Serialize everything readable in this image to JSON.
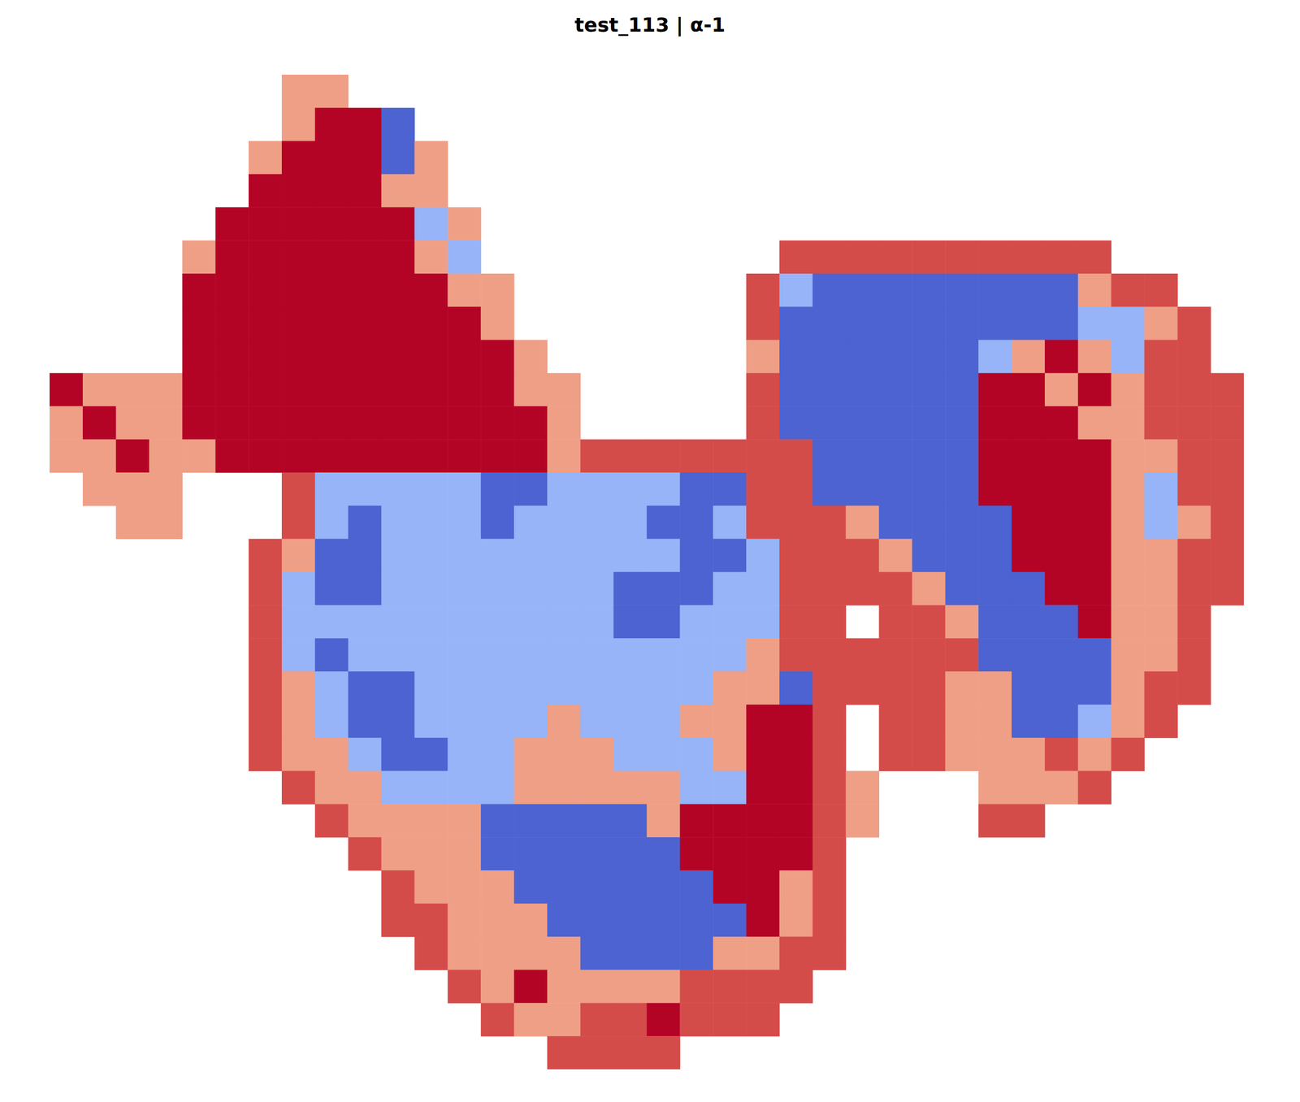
{
  "chart_data": {
    "type": "heatmap",
    "title": "test_113 | α-1",
    "values": [
      [
        null,
        null,
        null,
        null,
        null,
        null,
        null,
        0.4,
        0.4,
        null,
        null,
        null,
        null,
        null,
        null,
        null,
        null,
        null,
        null,
        null,
        null,
        null,
        null,
        null,
        null,
        null,
        null,
        null,
        null,
        null,
        null,
        null,
        null,
        null,
        null,
        null
      ],
      [
        null,
        null,
        null,
        null,
        null,
        null,
        null,
        0.4,
        0.9,
        0.9,
        -0.8,
        null,
        null,
        null,
        null,
        null,
        null,
        null,
        null,
        null,
        null,
        null,
        null,
        null,
        null,
        null,
        null,
        null,
        null,
        null,
        null,
        null,
        null,
        null,
        null,
        null
      ],
      [
        null,
        null,
        null,
        null,
        null,
        null,
        0.4,
        0.9,
        0.9,
        0.9,
        -0.8,
        0.4,
        null,
        null,
        null,
        null,
        null,
        null,
        null,
        null,
        null,
        null,
        null,
        null,
        null,
        null,
        null,
        null,
        null,
        null,
        null,
        null,
        null,
        null,
        null,
        null
      ],
      [
        null,
        null,
        null,
        null,
        null,
        null,
        0.9,
        0.9,
        0.9,
        0.9,
        0.4,
        0.4,
        null,
        null,
        null,
        null,
        null,
        null,
        null,
        null,
        null,
        null,
        null,
        null,
        null,
        null,
        null,
        null,
        null,
        null,
        null,
        null,
        null,
        null,
        null,
        null
      ],
      [
        null,
        null,
        null,
        null,
        null,
        0.9,
        0.9,
        0.9,
        0.9,
        0.9,
        0.9,
        -0.4,
        0.4,
        null,
        null,
        null,
        null,
        null,
        null,
        null,
        null,
        null,
        null,
        null,
        null,
        null,
        null,
        null,
        null,
        null,
        null,
        null,
        null,
        null,
        null,
        null
      ],
      [
        null,
        null,
        null,
        null,
        0.4,
        0.9,
        0.9,
        0.9,
        0.9,
        0.9,
        0.9,
        0.4,
        -0.4,
        null,
        null,
        null,
        null,
        null,
        null,
        null,
        null,
        null,
        0.7,
        0.7,
        0.7,
        0.7,
        0.7,
        0.7,
        0.7,
        0.7,
        0.7,
        0.7,
        null,
        null,
        null,
        null
      ],
      [
        null,
        null,
        null,
        null,
        0.9,
        0.9,
        0.9,
        0.9,
        0.9,
        0.9,
        0.9,
        0.9,
        0.4,
        0.4,
        null,
        null,
        null,
        null,
        null,
        null,
        null,
        0.7,
        -0.4,
        -0.8,
        -0.8,
        -0.8,
        -0.8,
        -0.8,
        -0.8,
        -0.8,
        -0.8,
        0.4,
        0.7,
        0.7,
        null,
        null
      ],
      [
        null,
        null,
        null,
        null,
        0.9,
        0.9,
        0.9,
        0.9,
        0.9,
        0.9,
        0.9,
        0.9,
        0.9,
        0.4,
        null,
        null,
        null,
        null,
        null,
        null,
        null,
        0.7,
        -0.8,
        -0.8,
        -0.8,
        -0.8,
        -0.8,
        -0.8,
        -0.8,
        -0.8,
        -0.8,
        -0.4,
        -0.4,
        0.4,
        0.7,
        null
      ],
      [
        null,
        null,
        null,
        null,
        0.9,
        0.9,
        0.9,
        0.9,
        0.9,
        0.9,
        0.9,
        0.9,
        0.9,
        0.9,
        0.4,
        null,
        null,
        null,
        null,
        null,
        null,
        0.4,
        -0.8,
        -0.8,
        -0.8,
        -0.8,
        -0.8,
        -0.8,
        -0.4,
        0.4,
        0.9,
        0.4,
        -0.4,
        0.7,
        0.7,
        null
      ],
      [
        0.9,
        0.4,
        0.4,
        0.4,
        0.9,
        0.9,
        0.9,
        0.9,
        0.9,
        0.9,
        0.9,
        0.9,
        0.9,
        0.9,
        0.4,
        0.4,
        null,
        null,
        null,
        null,
        null,
        0.7,
        -0.8,
        -0.8,
        -0.8,
        -0.8,
        -0.8,
        -0.8,
        0.9,
        0.9,
        0.4,
        0.9,
        0.4,
        0.7,
        0.7,
        0.7
      ],
      [
        0.4,
        0.9,
        0.4,
        0.4,
        0.9,
        0.9,
        0.9,
        0.9,
        0.9,
        0.9,
        0.9,
        0.9,
        0.9,
        0.9,
        0.9,
        0.4,
        null,
        null,
        null,
        null,
        null,
        0.7,
        -0.8,
        -0.8,
        -0.8,
        -0.8,
        -0.8,
        -0.8,
        0.9,
        0.9,
        0.9,
        0.4,
        0.4,
        0.7,
        0.7,
        0.7
      ],
      [
        0.4,
        0.4,
        0.9,
        0.4,
        0.4,
        0.9,
        0.9,
        0.9,
        0.9,
        0.9,
        0.9,
        0.9,
        0.9,
        0.9,
        0.9,
        0.4,
        0.7,
        0.7,
        0.7,
        0.7,
        0.7,
        0.7,
        0.7,
        -0.8,
        -0.8,
        -0.8,
        -0.8,
        -0.8,
        0.9,
        0.9,
        0.9,
        0.9,
        0.4,
        0.4,
        0.7,
        0.7
      ],
      [
        null,
        0.4,
        0.4,
        0.4,
        null,
        null,
        null,
        0.7,
        -0.4,
        -0.4,
        -0.4,
        -0.4,
        -0.4,
        -0.8,
        -0.8,
        -0.4,
        -0.4,
        -0.4,
        -0.4,
        -0.8,
        -0.8,
        0.7,
        0.7,
        -0.8,
        -0.8,
        -0.8,
        -0.8,
        -0.8,
        0.9,
        0.9,
        0.9,
        0.9,
        0.4,
        -0.4,
        0.7,
        0.7
      ],
      [
        null,
        null,
        0.4,
        0.4,
        null,
        null,
        null,
        0.7,
        -0.4,
        -0.8,
        -0.4,
        -0.4,
        -0.4,
        -0.8,
        -0.4,
        -0.4,
        -0.4,
        -0.4,
        -0.8,
        -0.8,
        -0.4,
        0.7,
        0.7,
        0.7,
        0.4,
        -0.8,
        -0.8,
        -0.8,
        -0.8,
        0.9,
        0.9,
        0.9,
        0.4,
        -0.4,
        0.4,
        0.7
      ],
      [
        null,
        null,
        null,
        null,
        null,
        null,
        0.7,
        0.4,
        -0.8,
        -0.8,
        -0.4,
        -0.4,
        -0.4,
        -0.4,
        -0.4,
        -0.4,
        -0.4,
        -0.4,
        -0.4,
        -0.8,
        -0.8,
        -0.4,
        0.7,
        0.7,
        0.7,
        0.4,
        -0.8,
        -0.8,
        -0.8,
        0.9,
        0.9,
        0.9,
        0.4,
        0.4,
        0.7,
        0.7
      ],
      [
        null,
        null,
        null,
        null,
        null,
        null,
        0.7,
        -0.4,
        -0.8,
        -0.8,
        -0.4,
        -0.4,
        -0.4,
        -0.4,
        -0.4,
        -0.4,
        -0.4,
        -0.8,
        -0.8,
        -0.8,
        -0.4,
        -0.4,
        0.7,
        0.7,
        0.7,
        0.7,
        0.4,
        -0.8,
        -0.8,
        -0.8,
        0.9,
        0.9,
        0.4,
        0.4,
        0.7,
        0.7
      ],
      [
        null,
        null,
        null,
        null,
        null,
        null,
        0.7,
        -0.4,
        -0.4,
        -0.4,
        -0.4,
        -0.4,
        -0.4,
        -0.4,
        -0.4,
        -0.4,
        -0.4,
        -0.8,
        -0.8,
        -0.4,
        -0.4,
        -0.4,
        0.7,
        0.7,
        null,
        0.7,
        0.7,
        0.4,
        -0.8,
        -0.8,
        -0.8,
        0.9,
        0.4,
        0.4,
        0.7,
        null
      ],
      [
        null,
        null,
        null,
        null,
        null,
        null,
        0.7,
        -0.4,
        -0.8,
        -0.4,
        -0.4,
        -0.4,
        -0.4,
        -0.4,
        -0.4,
        -0.4,
        -0.4,
        -0.4,
        -0.4,
        -0.4,
        -0.4,
        0.4,
        0.7,
        0.7,
        0.7,
        0.7,
        0.7,
        0.7,
        -0.8,
        -0.8,
        -0.8,
        -0.8,
        0.4,
        0.4,
        0.7,
        null
      ],
      [
        null,
        null,
        null,
        null,
        null,
        null,
        0.7,
        0.4,
        -0.4,
        -0.8,
        -0.8,
        -0.4,
        -0.4,
        -0.4,
        -0.4,
        -0.4,
        -0.4,
        -0.4,
        -0.4,
        -0.4,
        0.4,
        0.4,
        -0.8,
        0.7,
        0.7,
        0.7,
        0.7,
        0.4,
        0.4,
        -0.8,
        -0.8,
        -0.8,
        0.4,
        0.7,
        0.7,
        null
      ],
      [
        null,
        null,
        null,
        null,
        null,
        null,
        0.7,
        0.4,
        -0.4,
        -0.8,
        -0.8,
        -0.4,
        -0.4,
        -0.4,
        -0.4,
        0.4,
        -0.4,
        -0.4,
        -0.4,
        0.4,
        0.4,
        0.9,
        0.9,
        0.7,
        null,
        0.7,
        0.7,
        0.4,
        0.4,
        -0.8,
        -0.8,
        -0.4,
        0.4,
        0.7,
        null,
        null
      ],
      [
        null,
        null,
        null,
        null,
        null,
        null,
        0.7,
        0.4,
        0.4,
        -0.4,
        -0.8,
        -0.8,
        -0.4,
        -0.4,
        0.4,
        0.4,
        0.4,
        -0.4,
        -0.4,
        -0.4,
        0.4,
        0.9,
        0.9,
        0.7,
        null,
        0.7,
        0.7,
        0.4,
        0.4,
        0.4,
        0.7,
        0.4,
        0.7,
        null,
        null,
        null
      ],
      [
        null,
        null,
        null,
        null,
        null,
        null,
        null,
        0.7,
        0.4,
        0.4,
        -0.4,
        -0.4,
        -0.4,
        -0.4,
        0.4,
        0.4,
        0.4,
        0.4,
        0.4,
        -0.4,
        -0.4,
        0.9,
        0.9,
        0.7,
        0.4,
        null,
        null,
        null,
        0.4,
        0.4,
        0.4,
        0.7,
        null,
        null,
        null,
        null
      ],
      [
        null,
        null,
        null,
        null,
        null,
        null,
        null,
        null,
        0.7,
        0.4,
        0.4,
        0.4,
        0.4,
        -0.8,
        -0.8,
        -0.8,
        -0.8,
        -0.8,
        0.4,
        0.9,
        0.9,
        0.9,
        0.9,
        0.7,
        0.4,
        null,
        null,
        null,
        0.7,
        0.7,
        null,
        null,
        null,
        null,
        null,
        null
      ],
      [
        null,
        null,
        null,
        null,
        null,
        null,
        null,
        null,
        null,
        0.7,
        0.4,
        0.4,
        0.4,
        -0.8,
        -0.8,
        -0.8,
        -0.8,
        -0.8,
        -0.8,
        0.9,
        0.9,
        0.9,
        0.9,
        0.7,
        null,
        null,
        null,
        null,
        null,
        null,
        null,
        null,
        null,
        null,
        null,
        null
      ],
      [
        null,
        null,
        null,
        null,
        null,
        null,
        null,
        null,
        null,
        null,
        0.7,
        0.4,
        0.4,
        0.4,
        -0.8,
        -0.8,
        -0.8,
        -0.8,
        -0.8,
        -0.8,
        0.9,
        0.9,
        0.4,
        0.7,
        null,
        null,
        null,
        null,
        null,
        null,
        null,
        null,
        null,
        null,
        null,
        null
      ],
      [
        null,
        null,
        null,
        null,
        null,
        null,
        null,
        null,
        null,
        null,
        0.7,
        0.7,
        0.4,
        0.4,
        0.4,
        -0.8,
        -0.8,
        -0.8,
        -0.8,
        -0.8,
        -0.8,
        0.9,
        0.4,
        0.7,
        null,
        null,
        null,
        null,
        null,
        null,
        null,
        null,
        null,
        null,
        null,
        null
      ],
      [
        null,
        null,
        null,
        null,
        null,
        null,
        null,
        null,
        null,
        null,
        null,
        0.7,
        0.4,
        0.4,
        0.4,
        0.4,
        -0.8,
        -0.8,
        -0.8,
        -0.8,
        0.4,
        0.4,
        0.7,
        0.7,
        null,
        null,
        null,
        null,
        null,
        null,
        null,
        null,
        null,
        null,
        null,
        null
      ],
      [
        null,
        null,
        null,
        null,
        null,
        null,
        null,
        null,
        null,
        null,
        null,
        null,
        0.7,
        0.4,
        0.9,
        0.4,
        0.4,
        0.4,
        0.4,
        0.7,
        0.7,
        0.7,
        0.7,
        null,
        null,
        null,
        null,
        null,
        null,
        null,
        null,
        null,
        null,
        null,
        null,
        null
      ],
      [
        null,
        null,
        null,
        null,
        null,
        null,
        null,
        null,
        null,
        null,
        null,
        null,
        null,
        0.7,
        0.4,
        0.4,
        0.7,
        0.7,
        0.9,
        0.7,
        0.7,
        0.7,
        null,
        null,
        null,
        null,
        null,
        null,
        null,
        null,
        null,
        null,
        null,
        null,
        null,
        null
      ],
      [
        null,
        null,
        null,
        null,
        null,
        null,
        null,
        null,
        null,
        null,
        null,
        null,
        null,
        null,
        null,
        0.7,
        0.7,
        0.7,
        0.7,
        null,
        null,
        null,
        null,
        null,
        null,
        null,
        null,
        null,
        null,
        null,
        null,
        null,
        null,
        null,
        null,
        null
      ]
    ]
  }
}
